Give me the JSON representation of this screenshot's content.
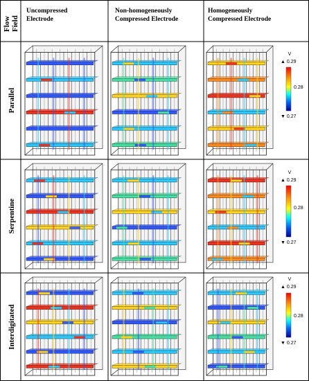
{
  "corner_label": [
    "Flow",
    "Field"
  ],
  "columns": [
    {
      "line1": "Uncompressed",
      "line2": "Electrode"
    },
    {
      "line1": "Non-homogeneously",
      "line2": "Compressed Electrode"
    },
    {
      "line1": "Homogeneously",
      "line2": "Compressed Electrode"
    }
  ],
  "rows": [
    {
      "label": "Parallel"
    },
    {
      "label": "Serpentine"
    },
    {
      "label": "Interdigitated"
    }
  ],
  "colorbar": {
    "unit": "V",
    "max_label": "▲ 0.29",
    "mid_label": "0.28",
    "min_label": "▼ 0.27",
    "stops": [
      "#ff0000",
      "#ff9900",
      "#ffff00",
      "#00ffff",
      "#0066ff",
      "#000099"
    ]
  },
  "colors": {
    "blue": "#2f56ff",
    "cyan": "#29c8ff",
    "green": "#44e0a0",
    "yellow": "#ffd21e",
    "orange": "#ff8a1c",
    "red": "#f0301c",
    "wire": "#1a1a1a"
  }
}
